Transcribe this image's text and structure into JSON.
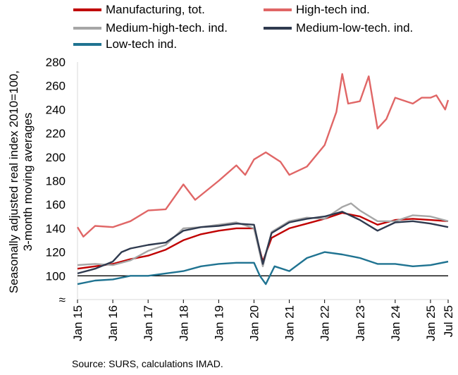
{
  "chart_data": {
    "type": "line",
    "ylabel_line1": "Seasonally adjusted real  index 2010=100,",
    "ylabel_line2": "3-month moving averages",
    "source": "Source: SURS, calculations IMAD.",
    "ylim": [
      80,
      280
    ],
    "yticks": [
      "≈",
      "100",
      "120",
      "140",
      "160",
      "180",
      "200",
      "220",
      "240",
      "260",
      "280"
    ],
    "ytick_values": [
      80,
      100,
      120,
      140,
      160,
      180,
      200,
      220,
      240,
      260,
      280
    ],
    "xticks": [
      "Jan 15",
      "Jan 16",
      "Jan 17",
      "Jan 18",
      "Jan 19",
      "Jan 20",
      "Jan 21",
      "Jan 22",
      "Jan 23",
      "Jan 24",
      "Jan 25",
      "Jul 25"
    ],
    "xtick_dates": [
      "2015-01",
      "2016-01",
      "2017-01",
      "2018-01",
      "2019-01",
      "2020-01",
      "2021-01",
      "2022-01",
      "2023-01",
      "2024-01",
      "2025-01",
      "2025-07"
    ],
    "x_range": [
      "2015-01",
      "2025-07"
    ],
    "reference_line": 100,
    "grid": false,
    "legend_position": "top",
    "series": [
      {
        "name": "Manufacturing, tot.",
        "color": "#c00000",
        "points": [
          [
            "2015-01",
            106
          ],
          [
            "2015-07",
            108
          ],
          [
            "2016-01",
            110
          ],
          [
            "2016-07",
            114
          ],
          [
            "2017-01",
            117
          ],
          [
            "2017-07",
            122
          ],
          [
            "2018-01",
            130
          ],
          [
            "2018-07",
            135
          ],
          [
            "2019-01",
            138
          ],
          [
            "2019-07",
            140
          ],
          [
            "2020-01",
            140
          ],
          [
            "2020-04",
            112
          ],
          [
            "2020-07",
            132
          ],
          [
            "2021-01",
            140
          ],
          [
            "2021-07",
            144
          ],
          [
            "2022-01",
            148
          ],
          [
            "2022-07",
            153
          ],
          [
            "2023-01",
            150
          ],
          [
            "2023-07",
            143
          ],
          [
            "2024-01",
            147
          ],
          [
            "2024-07",
            148
          ],
          [
            "2025-01",
            147
          ],
          [
            "2025-07",
            146
          ]
        ]
      },
      {
        "name": "High-tech ind.",
        "color": "#e06666",
        "points": [
          [
            "2015-01",
            141
          ],
          [
            "2015-03",
            133
          ],
          [
            "2015-07",
            142
          ],
          [
            "2016-01",
            141
          ],
          [
            "2016-07",
            146
          ],
          [
            "2017-01",
            155
          ],
          [
            "2017-07",
            156
          ],
          [
            "2018-01",
            177
          ],
          [
            "2018-05",
            164
          ],
          [
            "2018-09",
            172
          ],
          [
            "2019-01",
            180
          ],
          [
            "2019-07",
            193
          ],
          [
            "2019-10",
            185
          ],
          [
            "2020-01",
            198
          ],
          [
            "2020-05",
            204
          ],
          [
            "2020-10",
            196
          ],
          [
            "2021-01",
            185
          ],
          [
            "2021-07",
            192
          ],
          [
            "2022-01",
            210
          ],
          [
            "2022-03",
            224
          ],
          [
            "2022-05",
            238
          ],
          [
            "2022-07",
            270
          ],
          [
            "2022-09",
            245
          ],
          [
            "2023-01",
            247
          ],
          [
            "2023-04",
            268
          ],
          [
            "2023-07",
            224
          ],
          [
            "2023-10",
            232
          ],
          [
            "2024-01",
            250
          ],
          [
            "2024-07",
            245
          ],
          [
            "2024-10",
            250
          ],
          [
            "2025-01",
            250
          ],
          [
            "2025-03",
            252
          ],
          [
            "2025-06",
            240
          ],
          [
            "2025-07",
            248
          ]
        ]
      },
      {
        "name": "Medium-high-tech. ind.",
        "color": "#a6a6a6",
        "points": [
          [
            "2015-01",
            109
          ],
          [
            "2015-07",
            110
          ],
          [
            "2016-01",
            109
          ],
          [
            "2016-07",
            113
          ],
          [
            "2017-01",
            121
          ],
          [
            "2017-07",
            126
          ],
          [
            "2018-01",
            140
          ],
          [
            "2018-07",
            141
          ],
          [
            "2019-01",
            143
          ],
          [
            "2019-07",
            145
          ],
          [
            "2020-01",
            140
          ],
          [
            "2020-04",
            108
          ],
          [
            "2020-07",
            137
          ],
          [
            "2021-01",
            146
          ],
          [
            "2021-07",
            149
          ],
          [
            "2022-01",
            148
          ],
          [
            "2022-07",
            158
          ],
          [
            "2022-10",
            161
          ],
          [
            "2023-01",
            155
          ],
          [
            "2023-07",
            146
          ],
          [
            "2024-01",
            146
          ],
          [
            "2024-07",
            151
          ],
          [
            "2025-01",
            150
          ],
          [
            "2025-07",
            146
          ]
        ]
      },
      {
        "name": "Medium-low-tech. ind.",
        "color": "#2f3a4f",
        "points": [
          [
            "2015-01",
            102
          ],
          [
            "2015-07",
            106
          ],
          [
            "2016-01",
            112
          ],
          [
            "2016-04",
            120
          ],
          [
            "2016-07",
            123
          ],
          [
            "2017-01",
            126
          ],
          [
            "2017-07",
            128
          ],
          [
            "2018-01",
            138
          ],
          [
            "2018-07",
            141
          ],
          [
            "2019-01",
            142
          ],
          [
            "2019-07",
            144
          ],
          [
            "2020-01",
            143
          ],
          [
            "2020-04",
            110
          ],
          [
            "2020-07",
            136
          ],
          [
            "2021-01",
            145
          ],
          [
            "2021-07",
            148
          ],
          [
            "2022-01",
            150
          ],
          [
            "2022-07",
            154
          ],
          [
            "2023-01",
            147
          ],
          [
            "2023-07",
            138
          ],
          [
            "2024-01",
            145
          ],
          [
            "2024-07",
            146
          ],
          [
            "2025-01",
            144
          ],
          [
            "2025-07",
            141
          ]
        ]
      },
      {
        "name": "Low-tech ind.",
        "color": "#1f7391",
        "points": [
          [
            "2015-01",
            93
          ],
          [
            "2015-07",
            96
          ],
          [
            "2016-01",
            97
          ],
          [
            "2016-07",
            100
          ],
          [
            "2017-01",
            100
          ],
          [
            "2017-07",
            102
          ],
          [
            "2018-01",
            104
          ],
          [
            "2018-07",
            108
          ],
          [
            "2019-01",
            110
          ],
          [
            "2019-07",
            111
          ],
          [
            "2020-01",
            111
          ],
          [
            "2020-03",
            100
          ],
          [
            "2020-05",
            93
          ],
          [
            "2020-08",
            108
          ],
          [
            "2021-01",
            104
          ],
          [
            "2021-07",
            115
          ],
          [
            "2022-01",
            120
          ],
          [
            "2022-07",
            118
          ],
          [
            "2023-01",
            115
          ],
          [
            "2023-07",
            110
          ],
          [
            "2024-01",
            110
          ],
          [
            "2024-07",
            108
          ],
          [
            "2025-01",
            109
          ],
          [
            "2025-07",
            112
          ]
        ]
      }
    ]
  }
}
